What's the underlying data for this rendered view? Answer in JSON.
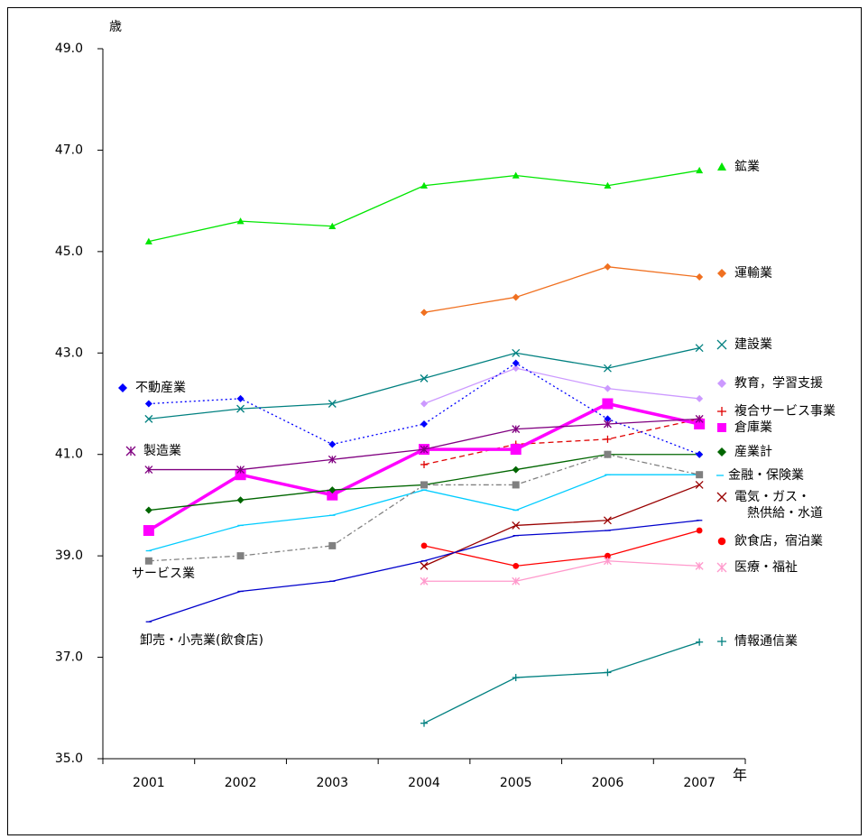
{
  "chart_data": {
    "type": "line",
    "y_label": "歳",
    "x_label": "年",
    "categories": [
      "2001",
      "2002",
      "2003",
      "2004",
      "2005",
      "2006",
      "2007"
    ],
    "ylim": [
      35,
      49
    ],
    "yticks": [
      {
        "value": 35,
        "label": "35.0"
      },
      {
        "value": 37,
        "label": "37.0"
      },
      {
        "value": 39,
        "label": "39.0"
      },
      {
        "value": 41,
        "label": "41.0"
      },
      {
        "value": 43,
        "label": "43.0"
      },
      {
        "value": 45,
        "label": "45.0"
      },
      {
        "value": 47,
        "label": "47.0"
      },
      {
        "value": 49,
        "label": "49.0"
      }
    ],
    "series": [
      {
        "name": "鉱業",
        "color": "#00e600",
        "marker": "triangle",
        "dash": "solid",
        "values": [
          45.2,
          45.6,
          45.5,
          46.3,
          46.5,
          46.3,
          46.6
        ]
      },
      {
        "name": "運輸業",
        "color": "#f07020",
        "marker": "diamond",
        "dash": "solid",
        "values": [
          null,
          null,
          null,
          43.8,
          44.1,
          44.7,
          44.5
        ]
      },
      {
        "name": "建設業",
        "color": "#008080",
        "marker": "x",
        "dash": "solid",
        "values": [
          41.7,
          41.9,
          42.0,
          42.5,
          43.0,
          42.7,
          43.1
        ]
      },
      {
        "name": "教育，学習支援",
        "color": "#cc99ff",
        "marker": "diamond",
        "dash": "solid",
        "values": [
          null,
          null,
          null,
          42.0,
          42.7,
          42.3,
          42.1
        ]
      },
      {
        "name": "複合サービス事業",
        "color": "#e00000",
        "marker": "plus",
        "dash": "dashed",
        "values": [
          null,
          null,
          null,
          40.8,
          41.2,
          41.3,
          41.7
        ]
      },
      {
        "name": "倉庫業",
        "color": "#ff00ff",
        "marker": "square",
        "dash": "thick",
        "values": [
          39.5,
          40.6,
          40.2,
          41.1,
          41.1,
          42.0,
          41.6
        ]
      },
      {
        "name": "産業計",
        "color": "#006600",
        "marker": "diamond",
        "dash": "solid",
        "values": [
          39.9,
          40.1,
          40.3,
          40.4,
          40.7,
          41.0,
          41.0
        ]
      },
      {
        "name": "金融・保険業",
        "color": "#00ccff",
        "marker": "dash",
        "dash": "solid",
        "values": [
          39.1,
          39.6,
          39.8,
          40.3,
          39.9,
          40.6,
          40.6
        ]
      },
      {
        "name": "電気・ガス・\n熱供給・水道",
        "color": "#990000",
        "marker": "x",
        "dash": "solid",
        "values": [
          null,
          null,
          null,
          38.8,
          39.6,
          39.7,
          40.4
        ]
      },
      {
        "name": "飲食店，宿泊業",
        "color": "#ff0000",
        "marker": "circle",
        "dash": "solid",
        "values": [
          null,
          null,
          null,
          39.2,
          38.8,
          39.0,
          39.5
        ]
      },
      {
        "name": "医療・福祉",
        "color": "#ff99cc",
        "marker": "asterisk",
        "dash": "solid",
        "values": [
          null,
          null,
          null,
          38.5,
          38.5,
          38.9,
          38.8
        ]
      },
      {
        "name": "情報通信業",
        "color": "#008080",
        "marker": "plus",
        "dash": "solid",
        "values": [
          null,
          null,
          null,
          35.7,
          36.6,
          36.7,
          37.3
        ]
      },
      {
        "name": "不動産業",
        "color": "#0000ff",
        "marker": "diamond",
        "dash": "dotted",
        "values": [
          42.0,
          42.1,
          41.2,
          41.6,
          42.8,
          41.7,
          41.0
        ]
      },
      {
        "name": "製造業",
        "color": "#800080",
        "marker": "asterisk",
        "dash": "solid",
        "values": [
          40.7,
          40.7,
          40.9,
          41.1,
          41.5,
          41.6,
          41.7
        ]
      },
      {
        "name": "サービス業",
        "color": "#808080",
        "marker": "square",
        "dash": "dashdot",
        "values": [
          38.9,
          39.0,
          39.2,
          40.4,
          40.4,
          41.0,
          40.6
        ]
      },
      {
        "name": "卸売・小売業(飲食店)",
        "color": "#0000cc",
        "marker": "dash",
        "dash": "solid",
        "values": [
          37.7,
          38.3,
          38.5,
          38.9,
          39.4,
          39.5,
          39.7
        ]
      }
    ]
  }
}
